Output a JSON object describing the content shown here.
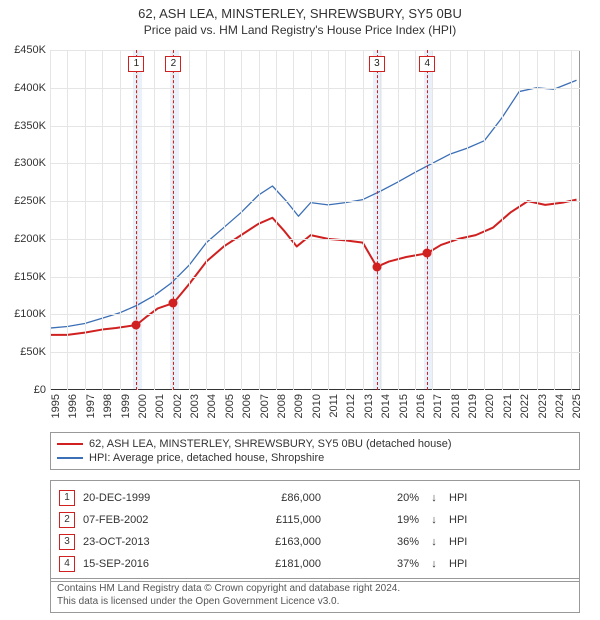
{
  "title_line1": "62, ASH LEA, MINSTERLEY, SHREWSBURY, SY5 0BU",
  "title_line2": "Price paid vs. HM Land Registry's House Price Index (HPI)",
  "chart": {
    "type": "line",
    "background_color": "#ffffff",
    "grid_color": "#e5e5e5",
    "axis_color": "#333333",
    "border_color": "#999999",
    "x_years": [
      1995,
      1996,
      1997,
      1998,
      1999,
      2000,
      2001,
      2002,
      2003,
      2004,
      2005,
      2006,
      2007,
      2008,
      2009,
      2010,
      2011,
      2012,
      2013,
      2014,
      2015,
      2016,
      2017,
      2018,
      2019,
      2020,
      2021,
      2022,
      2023,
      2024,
      2025
    ],
    "x_min": 1995,
    "x_max": 2025.5,
    "y_min": 0,
    "y_max": 450000,
    "y_ticks": [
      0,
      50000,
      100000,
      150000,
      200000,
      250000,
      300000,
      350000,
      400000,
      450000
    ],
    "y_tick_labels": [
      "£0",
      "£50K",
      "£100K",
      "£150K",
      "£200K",
      "£250K",
      "£300K",
      "£350K",
      "£400K",
      "£450K"
    ],
    "shaded_x_ranges": [
      [
        1999.8,
        2000.3
      ],
      [
        2001.9,
        2002.4
      ],
      [
        2013.6,
        2014.1
      ],
      [
        2016.5,
        2017.0
      ]
    ],
    "series": [
      {
        "id": "property",
        "label": "62, ASH LEA, MINSTERLEY, SHREWSBURY, SY5 0BU (detached house)",
        "color": "#d02020",
        "width": 2,
        "points": [
          [
            1995.0,
            73000
          ],
          [
            1996.0,
            73000
          ],
          [
            1997.0,
            76000
          ],
          [
            1998.0,
            80000
          ],
          [
            1998.8,
            82000
          ],
          [
            1999.97,
            86000
          ],
          [
            2000.5,
            96000
          ],
          [
            2001.2,
            108000
          ],
          [
            2002.1,
            115000
          ],
          [
            2003.0,
            140000
          ],
          [
            2004.0,
            170000
          ],
          [
            2005.0,
            190000
          ],
          [
            2006.0,
            205000
          ],
          [
            2007.0,
            220000
          ],
          [
            2007.8,
            228000
          ],
          [
            2008.5,
            210000
          ],
          [
            2009.2,
            190000
          ],
          [
            2010.0,
            205000
          ],
          [
            2011.0,
            200000
          ],
          [
            2012.0,
            198000
          ],
          [
            2013.0,
            195000
          ],
          [
            2013.81,
            163000
          ],
          [
            2014.5,
            170000
          ],
          [
            2015.5,
            176000
          ],
          [
            2016.71,
            181000
          ],
          [
            2017.5,
            192000
          ],
          [
            2018.5,
            200000
          ],
          [
            2019.5,
            205000
          ],
          [
            2020.5,
            215000
          ],
          [
            2021.5,
            235000
          ],
          [
            2022.5,
            250000
          ],
          [
            2023.5,
            245000
          ],
          [
            2024.5,
            248000
          ],
          [
            2025.3,
            252000
          ]
        ],
        "markers": [
          {
            "x": 1999.97,
            "y": 86000
          },
          {
            "x": 2002.1,
            "y": 115000
          },
          {
            "x": 2013.81,
            "y": 163000
          },
          {
            "x": 2016.71,
            "y": 181000
          }
        ]
      },
      {
        "id": "hpi",
        "label": "HPI: Average price, detached house, Shropshire",
        "color": "#3b6fb6",
        "width": 1.3,
        "points": [
          [
            1995.0,
            82000
          ],
          [
            1996.0,
            84000
          ],
          [
            1997.0,
            88000
          ],
          [
            1998.0,
            95000
          ],
          [
            1999.0,
            102000
          ],
          [
            2000.0,
            112000
          ],
          [
            2001.0,
            125000
          ],
          [
            2002.0,
            142000
          ],
          [
            2003.0,
            165000
          ],
          [
            2004.0,
            195000
          ],
          [
            2005.0,
            215000
          ],
          [
            2006.0,
            235000
          ],
          [
            2007.0,
            258000
          ],
          [
            2007.8,
            270000
          ],
          [
            2008.6,
            250000
          ],
          [
            2009.3,
            230000
          ],
          [
            2010.0,
            248000
          ],
          [
            2011.0,
            245000
          ],
          [
            2012.0,
            248000
          ],
          [
            2013.0,
            252000
          ],
          [
            2014.0,
            263000
          ],
          [
            2015.0,
            275000
          ],
          [
            2016.0,
            288000
          ],
          [
            2017.0,
            300000
          ],
          [
            2018.0,
            312000
          ],
          [
            2019.0,
            320000
          ],
          [
            2020.0,
            330000
          ],
          [
            2021.0,
            360000
          ],
          [
            2022.0,
            395000
          ],
          [
            2023.0,
            400000
          ],
          [
            2024.0,
            398000
          ],
          [
            2025.3,
            410000
          ]
        ]
      }
    ],
    "events": [
      {
        "n": "1",
        "x": 1999.97
      },
      {
        "n": "2",
        "x": 2002.1
      },
      {
        "n": "3",
        "x": 2013.81
      },
      {
        "n": "4",
        "x": 2016.71
      }
    ]
  },
  "legend": {
    "items": [
      {
        "color": "#d02020",
        "label": "62, ASH LEA, MINSTERLEY, SHREWSBURY, SY5 0BU (detached house)"
      },
      {
        "color": "#3b6fb6",
        "label": "HPI: Average price, detached house, Shropshire"
      }
    ]
  },
  "transactions": [
    {
      "n": "1",
      "date": "20-DEC-1999",
      "price": "£86,000",
      "pct": "20%",
      "arrow": "↓",
      "ref": "HPI"
    },
    {
      "n": "2",
      "date": "07-FEB-2002",
      "price": "£115,000",
      "pct": "19%",
      "arrow": "↓",
      "ref": "HPI"
    },
    {
      "n": "3",
      "date": "23-OCT-2013",
      "price": "£163,000",
      "pct": "36%",
      "arrow": "↓",
      "ref": "HPI"
    },
    {
      "n": "4",
      "date": "15-SEP-2016",
      "price": "£181,000",
      "pct": "37%",
      "arrow": "↓",
      "ref": "HPI"
    }
  ],
  "footnote_line1": "Contains HM Land Registry data © Crown copyright and database right 2024.",
  "footnote_line2": "This data is licensed under the Open Government Licence v3.0."
}
